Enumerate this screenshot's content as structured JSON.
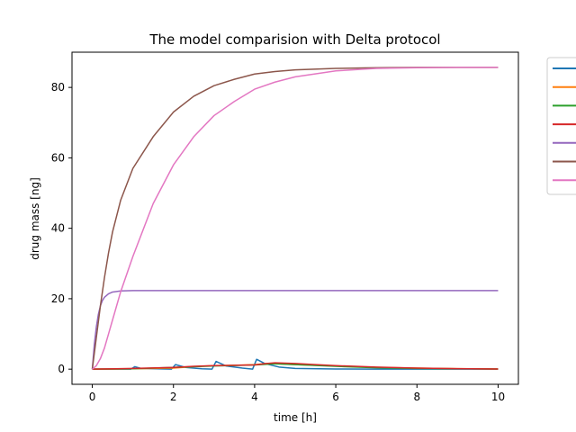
{
  "chart_data": {
    "type": "line",
    "title": "The model comparision with Delta protocol",
    "xlabel": "time [h]",
    "ylabel": "drug mass [ng]",
    "xlim": [
      -0.5,
      10.5
    ],
    "ylim": [
      -4.3,
      90
    ],
    "xticks": [
      0,
      2,
      4,
      6,
      8,
      10
    ],
    "yticks": [
      0,
      20,
      40,
      60,
      80
    ],
    "grid": false,
    "legend": "outside-top-right",
    "series": [
      {
        "color": "#1f77b4",
        "x": [
          0,
          0.95,
          1.05,
          1.2,
          1.95,
          2.05,
          2.3,
          2.7,
          2.95,
          3.05,
          3.3,
          3.7,
          3.95,
          4.05,
          4.25,
          4.6,
          5,
          6,
          7,
          8,
          9,
          10
        ],
        "y": [
          0,
          0,
          0.7,
          0.2,
          0,
          1.3,
          0.5,
          0.1,
          0,
          2.2,
          0.9,
          0.3,
          0,
          2.8,
          1.6,
          0.6,
          0.2,
          0.05,
          0,
          0,
          0,
          0
        ]
      },
      {
        "color": "#ff7f0e",
        "x": [
          0,
          1,
          1.5,
          2,
          2.5,
          3,
          3.5,
          4,
          4.3,
          4.6,
          5,
          6,
          7,
          8,
          9,
          10
        ],
        "y": [
          0,
          0.1,
          0.2,
          0.3,
          0.7,
          1.0,
          1.1,
          1.3,
          1.6,
          1.5,
          1.3,
          0.9,
          0.5,
          0.3,
          0.15,
          0.05
        ]
      },
      {
        "color": "#2ca02c",
        "x": [
          0,
          1,
          2,
          3,
          4,
          4.5,
          5,
          6,
          7,
          8,
          9,
          10
        ],
        "y": [
          0,
          0.1,
          0.5,
          0.9,
          1.2,
          1.5,
          1.3,
          0.8,
          0.4,
          0.2,
          0.1,
          0.05
        ]
      },
      {
        "color": "#d62728",
        "x": [
          0,
          1,
          2,
          2.5,
          3,
          3.5,
          4,
          4.3,
          4.5,
          5,
          5.5,
          6,
          7,
          8,
          9,
          10
        ],
        "y": [
          0,
          0.2,
          0.5,
          0.8,
          1.0,
          1.1,
          1.2,
          1.6,
          1.8,
          1.6,
          1.3,
          1.0,
          0.6,
          0.3,
          0.15,
          0.05
        ]
      },
      {
        "color": "#9467bd",
        "x": [
          0,
          0.05,
          0.1,
          0.15,
          0.2,
          0.25,
          0.3,
          0.4,
          0.5,
          0.7,
          1,
          2,
          4,
          6,
          8,
          10
        ],
        "y": [
          0,
          7,
          12,
          15.6,
          18,
          19.5,
          20.4,
          21.4,
          21.9,
          22.2,
          22.3,
          22.3,
          22.3,
          22.3,
          22.3,
          22.3
        ]
      },
      {
        "color": "#8c564b",
        "x": [
          0,
          0.1,
          0.2,
          0.3,
          0.4,
          0.5,
          0.7,
          1,
          1.5,
          2,
          2.5,
          3,
          3.5,
          4,
          4.5,
          5,
          6,
          7,
          8,
          9,
          10
        ],
        "y": [
          0,
          9,
          18,
          26,
          33,
          39,
          48,
          57,
          66,
          73,
          77.5,
          80.5,
          82.3,
          83.8,
          84.5,
          85,
          85.4,
          85.6,
          85.7,
          85.7,
          85.7
        ]
      },
      {
        "color": "#e377c2",
        "x": [
          0,
          0.1,
          0.2,
          0.3,
          0.4,
          0.5,
          0.7,
          1,
          1.5,
          2,
          2.5,
          3,
          3.5,
          4,
          4.5,
          5,
          6,
          7,
          8,
          9,
          10
        ],
        "y": [
          0,
          1,
          3,
          6,
          10,
          14,
          22,
          32,
          47,
          58,
          66,
          72,
          76,
          79.5,
          81.5,
          83,
          84.7,
          85.4,
          85.6,
          85.7,
          85.7
        ]
      }
    ]
  }
}
